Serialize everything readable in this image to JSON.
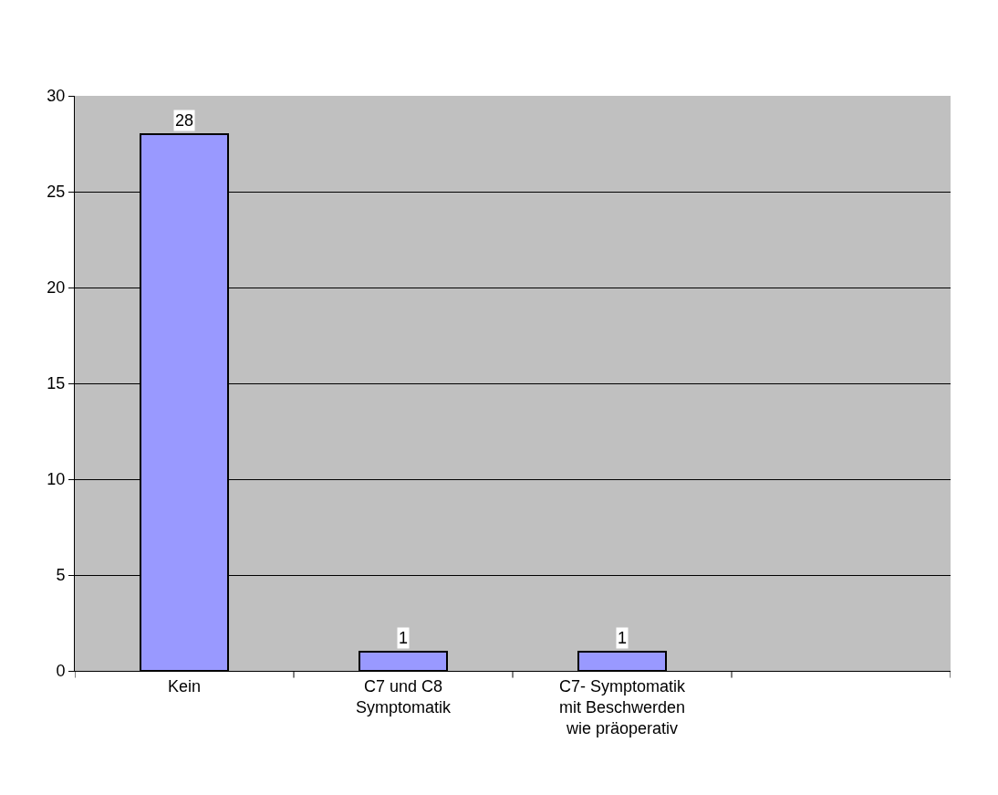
{
  "chart_data": {
    "type": "bar",
    "categories": [
      "Kein",
      "C7 und C8\nSymptomatik",
      "C7- Symptomatik\nmit Beschwerden\nwie präoperativ",
      null
    ],
    "values": [
      28,
      1,
      1,
      null
    ],
    "color": "#9999ff",
    "ylim": [
      0,
      30
    ],
    "yticks": [
      0,
      5,
      10,
      15,
      20,
      25,
      30
    ],
    "grid": "y",
    "data_labels": true,
    "legend": false
  }
}
